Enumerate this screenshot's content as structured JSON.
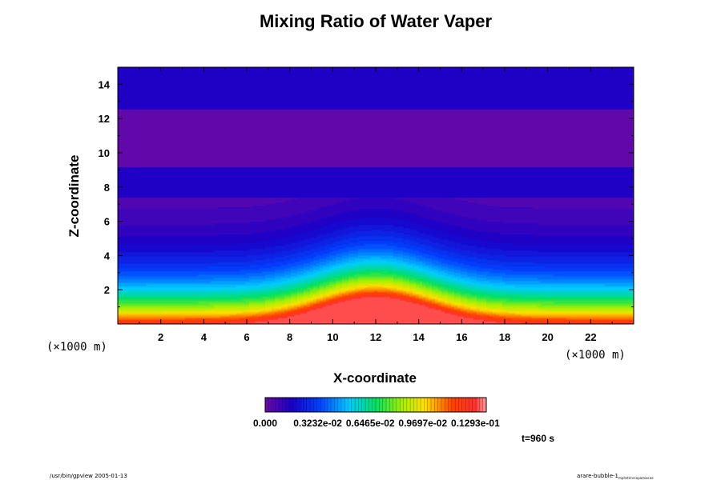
{
  "chart_data": {
    "type": "heatmap",
    "title": "Mixing Ratio of Water Vaper",
    "xlabel": "X-coordinate",
    "ylabel": "Z-coordinate",
    "x_unit": "(×1000 m)",
    "z_unit": "(×1000 m)",
    "xlim": [
      0,
      24
    ],
    "ylim": [
      0,
      15
    ],
    "x_ticks": [
      2,
      4,
      6,
      8,
      10,
      12,
      14,
      16,
      18,
      20,
      22
    ],
    "y_ticks": [
      2,
      4,
      6,
      8,
      10,
      12,
      14
    ],
    "field_description": "Water vapor mixing ratio; highest near the surface with a warm bubble maximum centered at x=12, decreasing with height",
    "bubble_center_x": 12,
    "colorbar_labels": [
      "0.000",
      "0.3232e-02",
      "0.6465e-02",
      "0.9697e-02",
      "0.1293e-01"
    ],
    "colorbar_range": [
      0.0,
      0.0136
    ],
    "time_label": "t=960 s"
  },
  "footer": {
    "left_note": "/usr/bin/gpview 2005-01-13",
    "right_note": "arare-bubble-1",
    "right_note_small": "mphstrinrcopamixcee"
  }
}
